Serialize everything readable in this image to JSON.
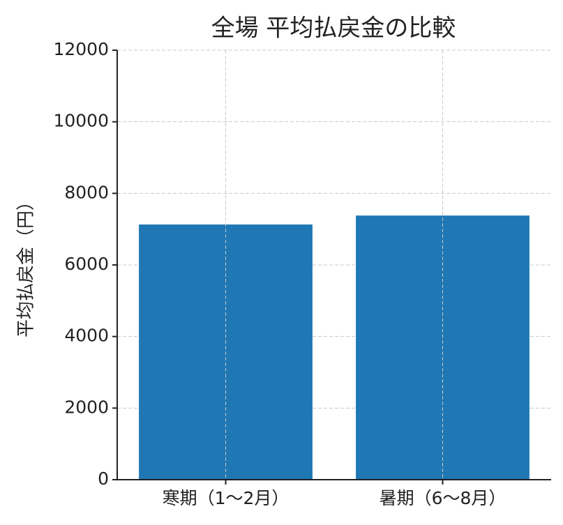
{
  "chart_data": {
    "type": "bar",
    "title": "全場 平均払戻金の比較",
    "y_label": "平均払戻金（円）",
    "categories": [
      "寒期（1〜2月）",
      "暑期（6〜8月）"
    ],
    "values": [
      7130,
      7380
    ],
    "color": "#1f77b4",
    "ylim": [
      0,
      12000
    ],
    "yticks": [
      0,
      2000,
      4000,
      6000,
      8000,
      10000,
      12000
    ],
    "grid": true
  }
}
